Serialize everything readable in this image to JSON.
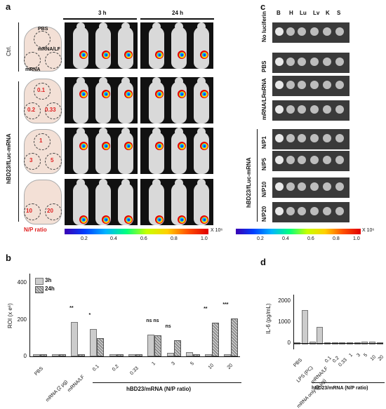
{
  "panels": {
    "a": "a",
    "b": "b",
    "c": "c",
    "d": "d"
  },
  "panel_a": {
    "times": [
      "3 h",
      "24 h"
    ],
    "ctrl_label": "Ctrl.",
    "group_label": "hBD23/fLuc-mRNA",
    "ctrl_sketch": {
      "pbs": "PBS",
      "mrna_lf": "mRNA/LF",
      "mrna": "mRNA"
    },
    "sketches": [
      [
        "0.1",
        "0.2",
        "0.33"
      ],
      [
        "1",
        "3",
        "5"
      ],
      [
        "10",
        "20"
      ]
    ],
    "np_ratio": "N/P ratio",
    "colorbar_unit": "X 10⁶",
    "colorbar_ticks": [
      "0.2",
      "0.4",
      "0.6",
      "0.8",
      "1.0"
    ]
  },
  "panel_c": {
    "organs": [
      "B",
      "H",
      "Lu",
      "Lv",
      "K",
      "S"
    ],
    "rows": [
      "No luciferin",
      "PBS",
      "mRNA",
      "mRNA/LF",
      "N/P1",
      "N/P5",
      "N/P10",
      "N/P20"
    ],
    "group_label": "hBD23/fLuc-mRNA",
    "colorbar_unit": "X 10⁶",
    "colorbar_ticks": [
      "0.2",
      "0.4",
      "0.6",
      "0.8",
      "1.0"
    ]
  },
  "chart_data": [
    {
      "type": "bar",
      "ylabel": "ROI (x e⁶)",
      "yticks": [
        "0",
        "200",
        "400"
      ],
      "ylim": [
        0,
        450
      ],
      "legend": [
        "3h",
        "24h"
      ],
      "categories": [
        "PBS",
        "mRNA (2 μg)",
        "mRNA/LF",
        "0.1",
        "0.2",
        "0.33",
        "1",
        "3",
        "5",
        "10",
        "20"
      ],
      "group_label": "hBD23/mRNA (N/P ratio)",
      "series": [
        {
          "name": "3h",
          "values": [
            2,
            3,
            180,
            140,
            4,
            4,
            110,
            10,
            15,
            5,
            5
          ]
        },
        {
          "name": "24h",
          "values": [
            2,
            3,
            3,
            90,
            4,
            3,
            105,
            80,
            4,
            175,
            200
          ]
        }
      ],
      "significance": [
        "",
        "",
        "**",
        "*",
        "",
        "",
        "ns ns",
        "ns",
        "",
        "**",
        "***"
      ]
    },
    {
      "type": "bar",
      "ylabel": "IL-6 (pg/mL)",
      "yticks": [
        "0",
        "1000",
        "2000"
      ],
      "ylim": [
        -300,
        2300
      ],
      "categories": [
        "PBS",
        "LPS (PC)",
        "mRNA only (2 μg)",
        "mRNA/LF",
        "0.1",
        "0.2",
        "0.33",
        "1",
        "3",
        "5",
        "10",
        "20"
      ],
      "group_label": "hBD23/mRNA (N/P ratio)",
      "values": [
        40,
        1580,
        60,
        780,
        20,
        30,
        50,
        45,
        30,
        60,
        70,
        30
      ]
    }
  ]
}
